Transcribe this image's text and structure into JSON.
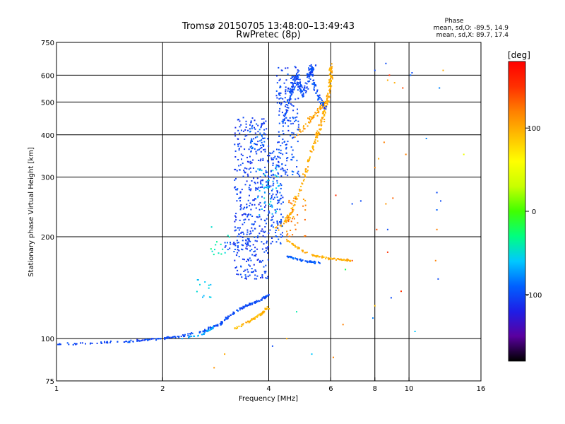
{
  "chart_data": {
    "type": "scatter",
    "title": "Tromsø 20150705 13:48:00–13:49:43",
    "subtitle": "RwPretec (8p)",
    "xlabel": "Frequency [MHz]",
    "ylabel": "Stationary phase Virtual Height [km]",
    "x_scale": "log",
    "y_scale": "log",
    "xlim": [
      1,
      16
    ],
    "ylim": [
      75,
      750
    ],
    "x_ticks": [
      1,
      2,
      4,
      6,
      8,
      10,
      16
    ],
    "x_tick_labels": [
      "1",
      "2",
      "4",
      "6",
      "8",
      "10",
      "16"
    ],
    "y_ticks": [
      75,
      100,
      200,
      300,
      400,
      500,
      600,
      750
    ],
    "y_tick_labels": [
      "75",
      "100",
      "200",
      "300",
      "400",
      "500",
      "600",
      "750"
    ],
    "grid": true,
    "info_box": {
      "heading": "Phase",
      "line_o": "mean, sd,O: -89.5, 14.9",
      "line_x": "mean, sd,X:  89.7, 17.4"
    },
    "colorbar": {
      "label": "[deg]",
      "range": [
        -180,
        180
      ],
      "ticks": [
        100,
        0,
        -100
      ],
      "tick_labels": [
        "100",
        "0",
        "-100"
      ],
      "stops": [
        "#000000",
        "#5a00a0",
        "#1e1ee6",
        "#0060ff",
        "#00c8ff",
        "#00ff80",
        "#40ff00",
        "#c8ff00",
        "#ffff00",
        "#ffc000",
        "#ff8000",
        "#ff3000",
        "#ff0000"
      ]
    },
    "traces": [
      {
        "segments": [
          [
            1.0,
            96
          ],
          [
            1.3,
            97
          ],
          [
            1.6,
            98
          ],
          [
            2.0,
            100
          ],
          [
            2.3,
            102
          ],
          [
            2.6,
            105
          ],
          [
            2.9,
            110
          ],
          [
            3.1,
            117
          ],
          [
            3.3,
            122
          ],
          [
            3.5,
            126
          ],
          [
            3.8,
            130
          ],
          [
            4.0,
            135
          ]
        ],
        "phase": -100,
        "spread": 0.012,
        "n": 260
      },
      {
        "segments": [
          [
            2.25,
            100
          ],
          [
            2.6,
            103
          ],
          [
            2.8,
            108
          ]
        ],
        "phase": -70,
        "spread": 0.01,
        "n": 30
      },
      {
        "segments": [
          [
            3.2,
            107
          ],
          [
            3.5,
            112
          ],
          [
            3.8,
            118
          ],
          [
            4.0,
            124
          ]
        ],
        "phase": 95,
        "spread": 0.012,
        "n": 60
      },
      {
        "segments": [
          [
            4.5,
            175
          ],
          [
            5.0,
            170
          ],
          [
            5.6,
            167
          ]
        ],
        "phase": -95,
        "spread": 0.01,
        "n": 60
      },
      {
        "segments": [
          [
            4.5,
            195
          ],
          [
            5.2,
            177
          ],
          [
            6.0,
            172
          ],
          [
            6.9,
            170
          ]
        ],
        "phase": 100,
        "spread": 0.01,
        "n": 90
      },
      {
        "segments": [
          [
            4.2,
            210
          ],
          [
            4.6,
            230
          ],
          [
            5.0,
            290
          ],
          [
            5.3,
            360
          ],
          [
            5.6,
            420
          ],
          [
            5.8,
            480
          ],
          [
            6.0,
            560
          ],
          [
            6.0,
            640
          ]
        ],
        "phase": 100,
        "spread": 0.03,
        "n": 220
      },
      {
        "segments": [
          [
            4.8,
            400
          ],
          [
            5.2,
            440
          ],
          [
            5.5,
            470
          ],
          [
            5.8,
            500
          ]
        ],
        "phase": 105,
        "spread": 0.03,
        "n": 70
      },
      {
        "segments": [
          [
            4.4,
            430
          ],
          [
            4.6,
            520
          ],
          [
            4.8,
            600
          ],
          [
            5.0,
            520
          ],
          [
            5.2,
            600
          ],
          [
            5.4,
            640
          ]
        ],
        "phase": -100,
        "spread": 0.04,
        "n": 160
      },
      {
        "segments": [
          [
            5.2,
            640
          ],
          [
            5.5,
            520
          ],
          [
            5.8,
            480
          ]
        ],
        "phase": -100,
        "spread": 0.03,
        "n": 60
      }
    ],
    "clouds": [
      {
        "x": [
          3.2,
          4.0
        ],
        "y": [
          150,
          450
        ],
        "phase": -105,
        "n": 420
      },
      {
        "x": [
          4.0,
          4.4
        ],
        "y": [
          190,
          360
        ],
        "phase": -100,
        "n": 120
      },
      {
        "x": [
          3.7,
          4.3
        ],
        "y": [
          230,
          330
        ],
        "phase": -60,
        "n": 40
      },
      {
        "x": [
          4.2,
          4.9
        ],
        "y": [
          300,
          640
        ],
        "phase": -100,
        "n": 170
      },
      {
        "x": [
          4.5,
          5.1
        ],
        "y": [
          200,
          260
        ],
        "phase": 120,
        "n": 35
      },
      {
        "x": [
          3.5,
          3.9
        ],
        "y": [
          360,
          420
        ],
        "phase": -90,
        "n": 25
      },
      {
        "x": [
          2.7,
          3.1
        ],
        "y": [
          170,
          215
        ],
        "phase": -40,
        "n": 14
      },
      {
        "x": [
          2.5,
          2.75
        ],
        "y": [
          130,
          150
        ],
        "phase": -60,
        "n": 12
      },
      {
        "x": [
          3.0,
          3.3
        ],
        "y": [
          180,
          195
        ],
        "phase": -100,
        "n": 18
      }
    ],
    "scattered": [
      [
        8.6,
        650,
        -100
      ],
      [
        8.8,
        600,
        150
      ],
      [
        10.2,
        610,
        -100
      ],
      [
        12.5,
        620,
        100
      ],
      [
        8.0,
        620,
        -100
      ],
      [
        12.2,
        550,
        -80
      ],
      [
        9.6,
        550,
        140
      ],
      [
        8.7,
        580,
        100
      ],
      [
        10.1,
        600,
        -90
      ],
      [
        11.2,
        390,
        -80
      ],
      [
        9.8,
        350,
        120
      ],
      [
        14.3,
        350,
        50
      ],
      [
        8.0,
        320,
        120
      ],
      [
        8.2,
        340,
        100
      ],
      [
        12.0,
        270,
        -100
      ],
      [
        12.0,
        240,
        -90
      ],
      [
        8.6,
        250,
        110
      ],
      [
        9.0,
        260,
        130
      ],
      [
        8.7,
        210,
        -100
      ],
      [
        8.1,
        210,
        140
      ],
      [
        8.7,
        180,
        150
      ],
      [
        12.0,
        210,
        120
      ],
      [
        12.1,
        150,
        -100
      ],
      [
        8.9,
        132,
        -100
      ],
      [
        9.5,
        138,
        150
      ],
      [
        8.0,
        125,
        90
      ],
      [
        10.4,
        105,
        -60
      ],
      [
        7.3,
        255,
        -100
      ],
      [
        6.9,
        250,
        -100
      ],
      [
        6.2,
        265,
        150
      ],
      [
        6.9,
        170,
        140
      ],
      [
        6.1,
        88,
        120
      ],
      [
        5.3,
        90,
        -60
      ],
      [
        4.5,
        100,
        100
      ],
      [
        6.5,
        110,
        120
      ],
      [
        4.8,
        120,
        -40
      ],
      [
        7.9,
        115,
        -80
      ],
      [
        3.0,
        90,
        100
      ],
      [
        2.8,
        82,
        110
      ],
      [
        12.3,
        255,
        -100
      ],
      [
        11.9,
        170,
        120
      ],
      [
        6.6,
        160,
        -20
      ],
      [
        9.1,
        570,
        100
      ],
      [
        8.5,
        380,
        120
      ],
      [
        4.1,
        95,
        -100
      ]
    ]
  }
}
